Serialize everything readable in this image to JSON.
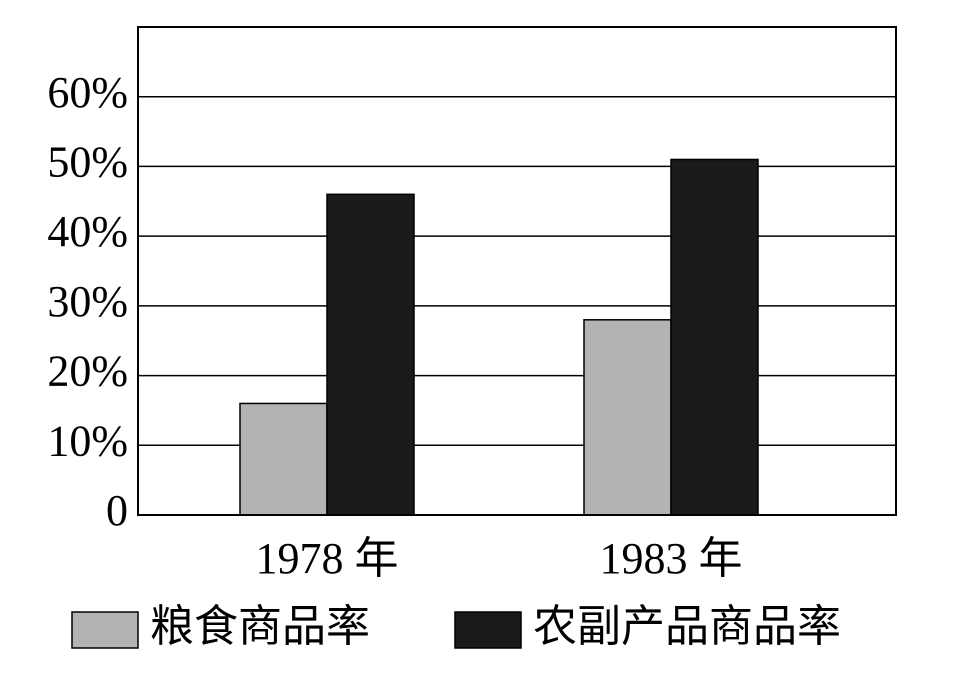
{
  "chart_data": {
    "type": "bar",
    "categories": [
      "1978 年",
      "1983 年"
    ],
    "series": [
      {
        "name": "粮食商品率",
        "color": "#b3b3b3",
        "values": [
          16,
          28
        ]
      },
      {
        "name": "农副产品商品率",
        "color": "#1a1a1a",
        "values": [
          46,
          51
        ]
      }
    ],
    "ylim": [
      0,
      70
    ],
    "yticks": [
      0,
      {
        "value": 10,
        "label": "10%"
      },
      {
        "value": 20,
        "label": "20%"
      },
      {
        "value": 30,
        "label": "30%"
      },
      {
        "value": 40,
        "label": "40%"
      },
      {
        "value": 50,
        "label": "50%"
      },
      {
        "value": 60,
        "label": "60%"
      }
    ],
    "grid": true,
    "legend": "bottom"
  }
}
